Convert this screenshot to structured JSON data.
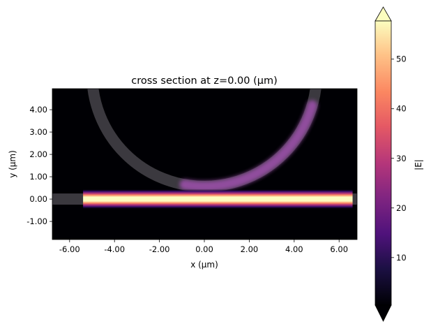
{
  "chart_data": {
    "type": "heatmap",
    "title": "cross section at z=0.00 (μm)",
    "xlabel": "x (μm)",
    "ylabel": "y (μm)",
    "xlim": [
      -6.77,
      6.8
    ],
    "ylim": [
      -1.81,
      4.94
    ],
    "xticks": [
      -6,
      -4,
      -2,
      0,
      2,
      4,
      6
    ],
    "xtick_labels": [
      "-6.00",
      "-4.00",
      "-2.00",
      "0.00",
      "2.00",
      "4.00",
      "6.00"
    ],
    "yticks": [
      -1,
      0,
      1,
      2,
      3,
      4
    ],
    "ytick_labels": [
      "-1.00",
      "0.00",
      "1.00",
      "2.00",
      "3.00",
      "4.00"
    ],
    "colormap": "magma",
    "colorbar": {
      "label": "|E|",
      "range": [
        0.4,
        57.7
      ],
      "ticks": [
        10,
        20,
        30,
        40,
        50
      ],
      "tick_labels": [
        "10",
        "20",
        "30",
        "40",
        "50"
      ],
      "extend": "both"
    },
    "structures": {
      "straight_waveguide": {
        "y_center": 0,
        "width": 0.5
      },
      "ring": {
        "center": [
          0,
          5.6
        ],
        "radius": 5.0,
        "width": 0.5
      }
    },
    "field": {
      "waveguide_x_range": [
        -5.4,
        6.6
      ],
      "waveguide_peak": 57,
      "ring_coupled_peak": 28
    },
    "colors": {
      "structure": "#3b393f",
      "background": "#000004"
    }
  }
}
